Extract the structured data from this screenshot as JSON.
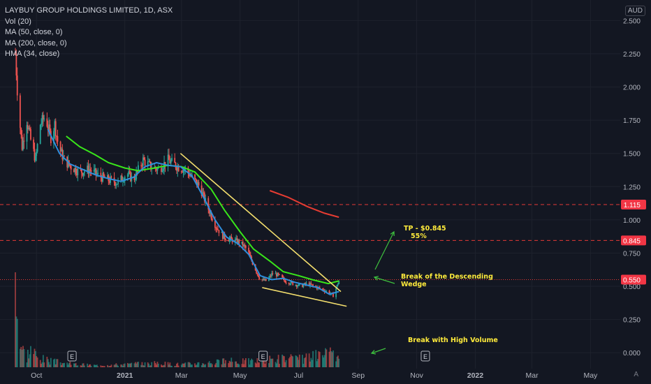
{
  "header": {
    "title": "LAYBUY GROUP HOLDINGS LIMITED, 1D, ASX",
    "indicators": [
      "Vol (20)",
      "MA (50, close, 0)",
      "MA (200, close, 0)",
      "HMA (34, close)"
    ],
    "currency": "AUD"
  },
  "annotations": {
    "tp": "TP - $0.845",
    "tp_pct": "55%",
    "break_wedge_1": "Break of the Descending",
    "break_wedge_2": "Wedge",
    "break_volume": "Break with High Volume"
  },
  "auto_label": "A",
  "earnings_marker": "E",
  "colors": {
    "background": "#131722",
    "up": "#26a69a",
    "down": "#ef5350",
    "hma": "#2f8fdf",
    "ma50": "#39e61a",
    "ma200": "#e63c32",
    "wedge": "#f5e06e",
    "arrow": "#3ec13e",
    "hline": "#e53935",
    "price_tag": "#f23645"
  },
  "chart_data": {
    "type": "candlestick",
    "title": "LAYBUY GROUP HOLDINGS LIMITED, 1D, ASX",
    "y_unit": "AUD",
    "y_ticks": [
      0.0,
      0.25,
      0.5,
      0.75,
      1.0,
      1.25,
      1.5,
      1.75,
      2.0,
      2.25,
      2.5
    ],
    "y_tick_labels": [
      "0.000",
      "0.250",
      "0.500",
      "0.750",
      "1.000",
      "1.250",
      "1.500",
      "1.750",
      "2.000",
      "2.250",
      "2.500"
    ],
    "ylim": [
      -0.12,
      2.56
    ],
    "x_labels": [
      "Oct",
      "2021",
      "Mar",
      "May",
      "Jul",
      "Sep",
      "Nov",
      "2022",
      "Mar",
      "May"
    ],
    "x_label_dates": [
      "2020-10-01",
      "2021-01-01",
      "2021-03-01",
      "2021-05-01",
      "2021-07-01",
      "2021-09-01",
      "2021-11-01",
      "2022-01-01",
      "2022-03-01",
      "2022-05-01"
    ],
    "xlim": [
      "2020-08-24",
      "2022-06-01"
    ],
    "grid": true,
    "price_series_close": [
      [
        "2020-09-09",
        2.25
      ],
      [
        "2020-09-12",
        1.85
      ],
      [
        "2020-09-16",
        1.55
      ],
      [
        "2020-09-21",
        1.75
      ],
      [
        "2020-09-25",
        1.6
      ],
      [
        "2020-09-30",
        1.45
      ],
      [
        "2020-10-05",
        1.72
      ],
      [
        "2020-10-10",
        1.78
      ],
      [
        "2020-10-16",
        1.62
      ],
      [
        "2020-10-20",
        1.72
      ],
      [
        "2020-10-24",
        1.55
      ],
      [
        "2020-10-30",
        1.45
      ],
      [
        "2020-11-06",
        1.4
      ],
      [
        "2020-11-15",
        1.36
      ],
      [
        "2020-11-25",
        1.38
      ],
      [
        "2020-12-05",
        1.33
      ],
      [
        "2020-12-15",
        1.3
      ],
      [
        "2020-12-25",
        1.28
      ],
      [
        "2021-01-03",
        1.35
      ],
      [
        "2021-01-10",
        1.3
      ],
      [
        "2021-01-20",
        1.45
      ],
      [
        "2021-01-28",
        1.4
      ],
      [
        "2021-02-05",
        1.38
      ],
      [
        "2021-02-15",
        1.45
      ],
      [
        "2021-02-25",
        1.4
      ],
      [
        "2021-03-05",
        1.38
      ],
      [
        "2021-03-12",
        1.32
      ],
      [
        "2021-03-20",
        1.25
      ],
      [
        "2021-03-28",
        1.1
      ],
      [
        "2021-04-06",
        0.95
      ],
      [
        "2021-04-14",
        0.87
      ],
      [
        "2021-04-22",
        0.85
      ],
      [
        "2021-05-01",
        0.83
      ],
      [
        "2021-05-08",
        0.78
      ],
      [
        "2021-05-15",
        0.66
      ],
      [
        "2021-05-22",
        0.55
      ],
      [
        "2021-05-29",
        0.54
      ],
      [
        "2021-06-04",
        0.6
      ],
      [
        "2021-06-10",
        0.58
      ],
      [
        "2021-06-17",
        0.54
      ],
      [
        "2021-06-25",
        0.52
      ],
      [
        "2021-07-03",
        0.5
      ],
      [
        "2021-07-10",
        0.52
      ],
      [
        "2021-07-17",
        0.5
      ],
      [
        "2021-07-24",
        0.48
      ],
      [
        "2021-07-31",
        0.46
      ],
      [
        "2021-08-06",
        0.43
      ],
      [
        "2021-08-12",
        0.54
      ]
    ],
    "last_price": 0.55,
    "price_tags": [
      {
        "value": 1.115,
        "label": "1.115"
      },
      {
        "value": 0.845,
        "label": "0.845"
      },
      {
        "value": 0.55,
        "label": "0.550"
      }
    ],
    "horizontal_lines": [
      1.115,
      0.845
    ],
    "hma_34": [
      [
        "2020-10-13",
        1.68
      ],
      [
        "2020-10-25",
        1.5
      ],
      [
        "2020-11-05",
        1.42
      ],
      [
        "2020-11-18",
        1.38
      ],
      [
        "2020-12-01",
        1.34
      ],
      [
        "2020-12-15",
        1.31
      ],
      [
        "2020-12-28",
        1.29
      ],
      [
        "2021-01-10",
        1.32
      ],
      [
        "2021-01-22",
        1.4
      ],
      [
        "2021-02-03",
        1.43
      ],
      [
        "2021-02-15",
        1.41
      ],
      [
        "2021-02-28",
        1.4
      ],
      [
        "2021-03-12",
        1.33
      ],
      [
        "2021-03-24",
        1.17
      ],
      [
        "2021-04-05",
        1.0
      ],
      [
        "2021-04-17",
        0.87
      ],
      [
        "2021-04-29",
        0.82
      ],
      [
        "2021-05-10",
        0.74
      ],
      [
        "2021-05-22",
        0.58
      ],
      [
        "2021-06-03",
        0.55
      ],
      [
        "2021-06-15",
        0.56
      ],
      [
        "2021-06-27",
        0.53
      ],
      [
        "2021-07-09",
        0.51
      ],
      [
        "2021-07-21",
        0.49
      ],
      [
        "2021-08-02",
        0.44
      ],
      [
        "2021-08-12",
        0.46
      ]
    ],
    "ma_50": [
      [
        "2020-11-01",
        1.63
      ],
      [
        "2020-11-15",
        1.55
      ],
      [
        "2020-12-01",
        1.49
      ],
      [
        "2020-12-15",
        1.43
      ],
      [
        "2021-01-01",
        1.39
      ],
      [
        "2021-01-15",
        1.37
      ],
      [
        "2021-02-01",
        1.39
      ],
      [
        "2021-02-15",
        1.41
      ],
      [
        "2021-03-01",
        1.4
      ],
      [
        "2021-03-15",
        1.36
      ],
      [
        "2021-04-01",
        1.23
      ],
      [
        "2021-04-15",
        1.07
      ],
      [
        "2021-05-01",
        0.91
      ],
      [
        "2021-05-15",
        0.78
      ],
      [
        "2021-06-01",
        0.69
      ],
      [
        "2021-06-15",
        0.61
      ],
      [
        "2021-07-01",
        0.58
      ],
      [
        "2021-07-15",
        0.55
      ],
      [
        "2021-08-01",
        0.52
      ],
      [
        "2021-08-12",
        0.54
      ]
    ],
    "ma_200": [
      [
        "2021-06-01",
        1.22
      ],
      [
        "2021-06-20",
        1.17
      ],
      [
        "2021-07-10",
        1.1
      ],
      [
        "2021-07-28",
        1.05
      ],
      [
        "2021-08-12",
        1.02
      ]
    ],
    "wedge_upper": [
      [
        "2021-02-28",
        1.5
      ],
      [
        "2021-08-14",
        0.46
      ]
    ],
    "wedge_lower": [
      [
        "2021-05-24",
        0.49
      ],
      [
        "2021-08-20",
        0.35
      ]
    ],
    "volume_relative": [
      [
        "2020-09-09",
        1.0
      ],
      [
        "2020-09-12",
        0.35
      ],
      [
        "2020-09-16",
        0.18
      ],
      [
        "2020-09-21",
        0.12
      ],
      [
        "2020-09-26",
        0.2
      ],
      [
        "2020-10-02",
        0.09
      ],
      [
        "2020-10-09",
        0.08
      ],
      [
        "2020-10-16",
        0.06
      ],
      [
        "2020-10-25",
        0.05
      ],
      [
        "2020-11-10",
        0.03
      ],
      [
        "2020-12-01",
        0.02
      ],
      [
        "2021-01-01",
        0.03
      ],
      [
        "2021-02-01",
        0.04
      ],
      [
        "2021-03-01",
        0.03
      ],
      [
        "2021-04-01",
        0.05
      ],
      [
        "2021-04-20",
        0.06
      ],
      [
        "2021-05-10",
        0.06
      ],
      [
        "2021-05-25",
        0.07
      ],
      [
        "2021-06-10",
        0.09
      ],
      [
        "2021-07-01",
        0.08
      ],
      [
        "2021-07-20",
        0.11
      ],
      [
        "2021-08-05",
        0.13
      ],
      [
        "2021-08-12",
        0.07
      ]
    ],
    "earnings_markers": [
      "2020-11-07",
      "2021-05-25",
      "2021-11-10"
    ]
  }
}
